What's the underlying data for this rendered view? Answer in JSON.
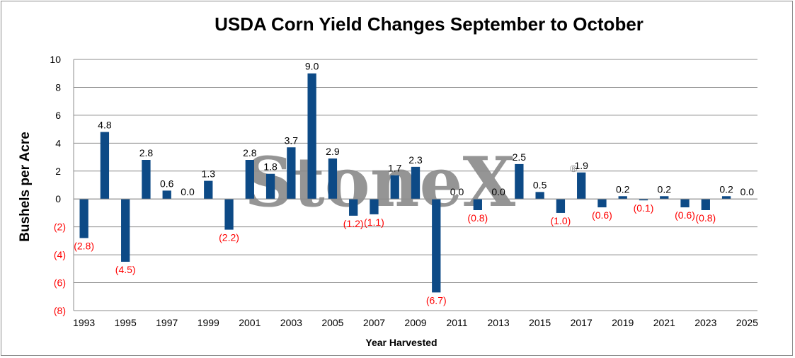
{
  "chart_data": {
    "type": "bar",
    "title": "USDA Corn Yield Changes September to October",
    "xlabel": "Year Harvested",
    "ylabel": "Bushels per Acre",
    "ylim": [
      -8,
      10
    ],
    "yticks": [
      10,
      8,
      6,
      4,
      2,
      0,
      -2,
      -4,
      -6,
      -8
    ],
    "ytick_labels": [
      "10",
      "8",
      "6",
      "4",
      "2",
      "0",
      "(2)",
      "(4)",
      "(6)",
      "(8)"
    ],
    "grid": true,
    "legend": "none",
    "bar_color": "#0d4a86",
    "negative_label_color": "#ff0000",
    "positive_label_color": "#000000",
    "categories": [
      "1993",
      "1994",
      "1995",
      "1996",
      "1997",
      "1998",
      "1999",
      "2000",
      "2001",
      "2002",
      "2003",
      "2004",
      "2005",
      "2006",
      "2007",
      "2008",
      "2009",
      "2010",
      "2011",
      "2012",
      "2013",
      "2014",
      "2015",
      "2016",
      "2017",
      "2018",
      "2019",
      "2020",
      "2021",
      "2022",
      "2023",
      "2024",
      "2025"
    ],
    "xtick_labels": [
      "1993",
      "1995",
      "1997",
      "1999",
      "2001",
      "2003",
      "2005",
      "2007",
      "2009",
      "2011",
      "2013",
      "2015",
      "2017",
      "2019",
      "2021",
      "2023",
      "2025"
    ],
    "values": [
      -2.8,
      4.8,
      -4.5,
      2.8,
      0.6,
      0.0,
      1.3,
      -2.2,
      2.8,
      1.8,
      3.7,
      9.0,
      2.9,
      -1.2,
      -1.1,
      1.7,
      2.3,
      -6.7,
      0.0,
      -0.8,
      0.0,
      2.5,
      0.5,
      -1.0,
      1.9,
      -0.6,
      0.2,
      -0.1,
      0.2,
      -0.6,
      -0.8,
      0.2,
      0.0
    ],
    "value_labels": [
      "(2.8)",
      "4.8",
      "(4.5)",
      "2.8",
      "0.6",
      "0.0",
      "1.3",
      "(2.2)",
      "2.8",
      "1.8",
      "3.7",
      "9.0",
      "2.9",
      "(1.2)",
      "(1.1)",
      "1.7",
      "2.3",
      "(6.7)",
      "0.0",
      "(0.8)",
      "0.0",
      "2.5",
      "0.5",
      "(1.0)",
      "1.9",
      "(0.6)",
      "0.2",
      "(0.1)",
      "0.2",
      "(0.6)",
      "(0.8)",
      "0.2",
      "0.0"
    ]
  },
  "watermark": {
    "text": "StoneX",
    "mark": "®"
  }
}
